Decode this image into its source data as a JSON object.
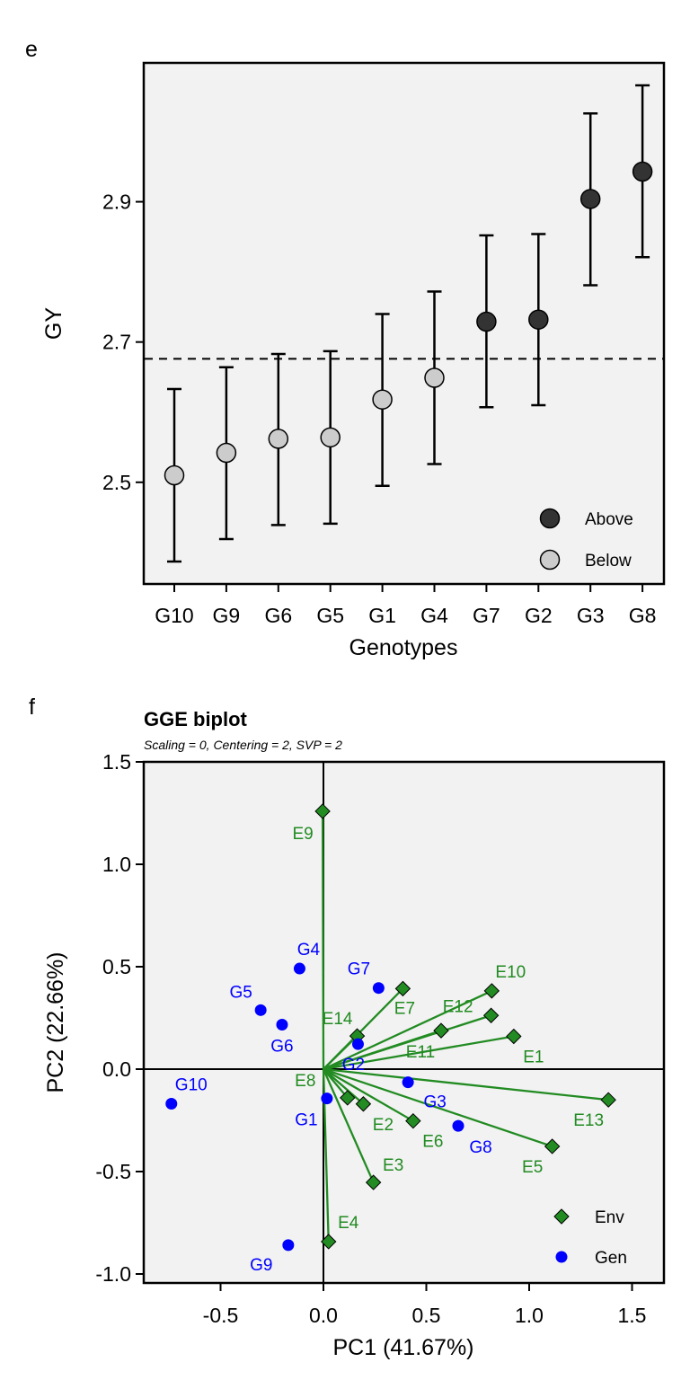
{
  "chart_data": [
    {
      "panel_label": "e",
      "type": "scatter",
      "xlabel": "Genotypes",
      "ylabel": "GY",
      "categories": [
        "G10",
        "G9",
        "G6",
        "G5",
        "G1",
        "G4",
        "G7",
        "G2",
        "G3",
        "G8"
      ],
      "values": [
        2.51,
        2.542,
        2.562,
        2.564,
        2.618,
        2.649,
        2.729,
        2.732,
        2.904,
        2.943
      ],
      "error_upper": [
        2.633,
        2.664,
        2.683,
        2.687,
        2.74,
        2.772,
        2.852,
        2.854,
        3.026,
        3.066
      ],
      "error_lower": [
        2.387,
        2.419,
        2.439,
        2.441,
        2.495,
        2.526,
        2.607,
        2.61,
        2.781,
        2.821
      ],
      "group": [
        "Below",
        "Below",
        "Below",
        "Below",
        "Below",
        "Below",
        "Above",
        "Above",
        "Above",
        "Above"
      ],
      "mean_line": 2.676,
      "ylim": [
        2.355,
        3.098
      ],
      "yticks": [
        "2.5",
        "2.7",
        "2.9"
      ],
      "yticks_values": [
        2.5,
        2.7,
        2.9
      ],
      "legend": [
        {
          "name": "Above",
          "color": "#333333"
        },
        {
          "name": "Below",
          "color": "#cccccc"
        }
      ],
      "legend_position": "bottom-right",
      "background": "#f2f2f2"
    },
    {
      "panel_label": "f",
      "type": "scatter",
      "title": "GGE biplot",
      "subtitle": "Scaling = 0, Centering = 2, SVP = 2",
      "xlabel": "PC1 (41.67%)",
      "ylabel": "PC2 (22.66%)",
      "xlim": [
        -0.873,
        1.66
      ],
      "ylim": [
        -1.044,
        1.5
      ],
      "xticks": [
        "-0.5",
        "0.0",
        "0.5",
        "1.0",
        "1.5"
      ],
      "xticks_values": [
        -0.5,
        0,
        0.5,
        1,
        1.5
      ],
      "yticks": [
        "1.5",
        "1.0",
        "0.5",
        "0.0",
        "-0.5",
        "-1.0"
      ],
      "yticks_values": [
        1.5,
        1,
        0.5,
        0,
        -0.5,
        -1
      ],
      "legend": [
        {
          "name": "Env",
          "color": "#228b22",
          "shape": "diamond"
        },
        {
          "name": "Gen",
          "color": "#0000ff",
          "shape": "circle"
        }
      ],
      "legend_position": "bottom-right",
      "background": "#f2f2f2",
      "genotypes": [
        {
          "name": "G1",
          "x": 0.017,
          "y": -0.143
        },
        {
          "name": "G2",
          "x": 0.168,
          "y": 0.122
        },
        {
          "name": "G3",
          "x": 0.411,
          "y": -0.064
        },
        {
          "name": "G4",
          "x": -0.116,
          "y": 0.491
        },
        {
          "name": "G5",
          "x": -0.305,
          "y": 0.288
        },
        {
          "name": "G6",
          "x": -0.201,
          "y": 0.217
        },
        {
          "name": "G7",
          "x": 0.268,
          "y": 0.396
        },
        {
          "name": "G8",
          "x": 0.655,
          "y": -0.277
        },
        {
          "name": "G9",
          "x": -0.171,
          "y": -0.859
        },
        {
          "name": "G10",
          "x": -0.739,
          "y": -0.169
        }
      ],
      "environments": [
        {
          "name": "E1",
          "x": 0.925,
          "y": 0.16
        },
        {
          "name": "E2",
          "x": 0.194,
          "y": -0.17
        },
        {
          "name": "E3",
          "x": 0.243,
          "y": -0.553
        },
        {
          "name": "E4",
          "x": 0.025,
          "y": -0.842
        },
        {
          "name": "E5",
          "x": 1.112,
          "y": -0.377
        },
        {
          "name": "E6",
          "x": 0.436,
          "y": -0.253
        },
        {
          "name": "E7",
          "x": 0.386,
          "y": 0.393
        },
        {
          "name": "E8",
          "x": 0.117,
          "y": -0.14
        },
        {
          "name": "E9",
          "x": -0.004,
          "y": 1.259
        },
        {
          "name": "E10",
          "x": 0.818,
          "y": 0.382
        },
        {
          "name": "E11",
          "x": 0.572,
          "y": 0.188
        },
        {
          "name": "E12",
          "x": 0.815,
          "y": 0.262
        },
        {
          "name": "E13",
          "x": 1.385,
          "y": -0.15
        },
        {
          "name": "E14",
          "x": 0.164,
          "y": 0.162
        }
      ]
    }
  ]
}
